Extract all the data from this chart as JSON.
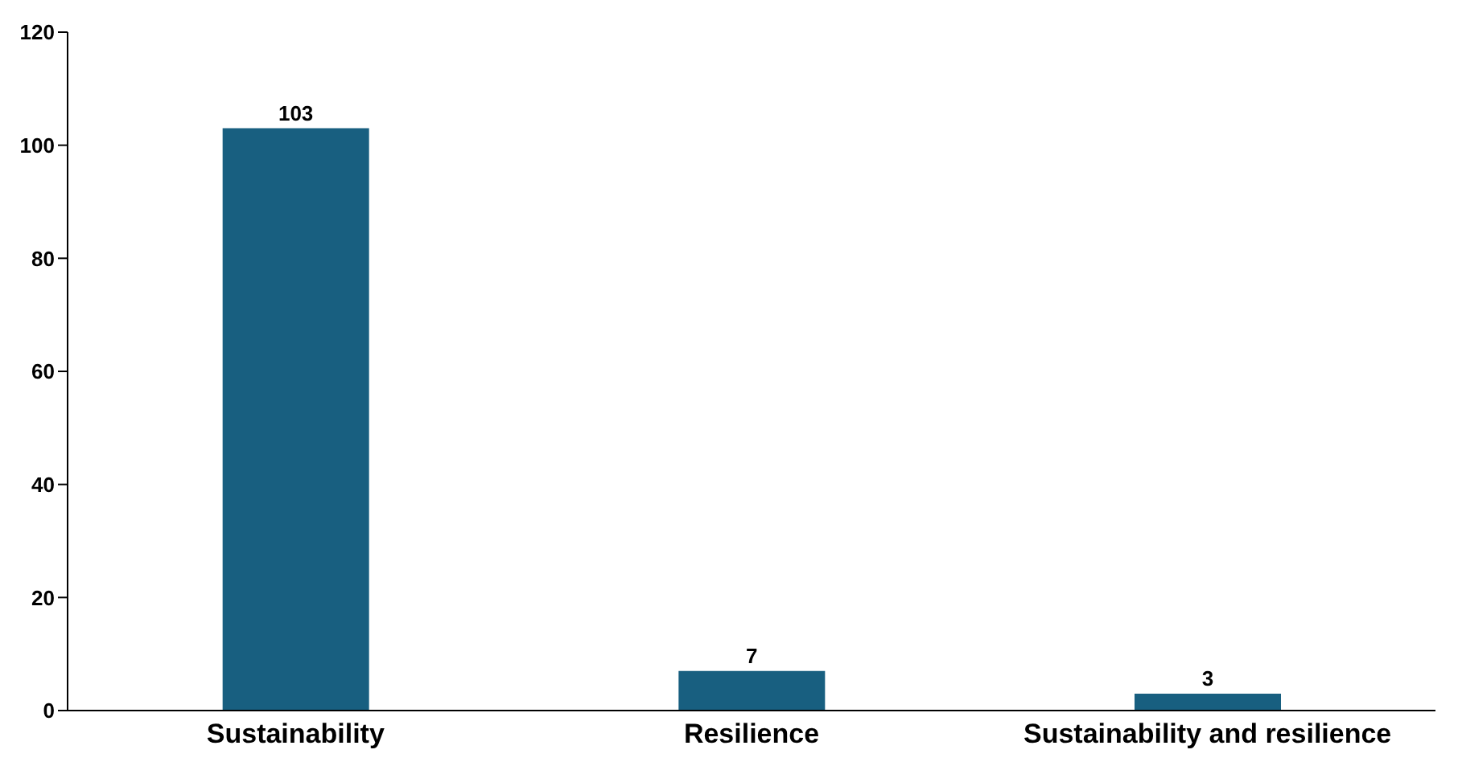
{
  "chart_data": {
    "type": "bar",
    "categories": [
      "Sustainability",
      "Resilience",
      "Sustainability and resilience"
    ],
    "values": [
      103,
      7,
      3
    ],
    "color": "#185f80",
    "ylim": [
      0,
      120
    ],
    "yticks": [
      0,
      20,
      40,
      60,
      80,
      100,
      120
    ],
    "data_labels": true,
    "grid": false,
    "legend": false
  }
}
